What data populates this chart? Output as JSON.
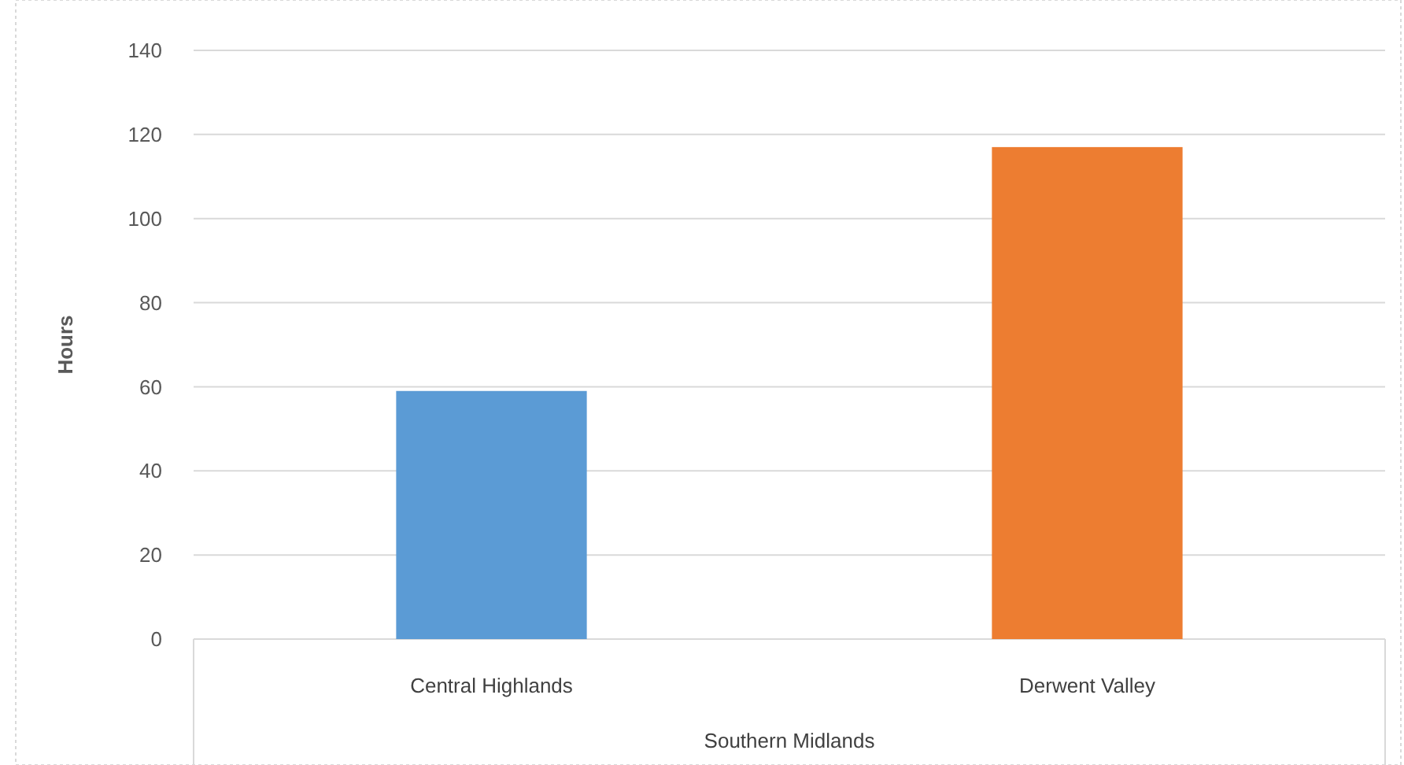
{
  "chart_data": {
    "type": "bar",
    "categories": [
      "Central Highlands",
      "Derwent Valley"
    ],
    "colors": [
      "#5b9bd5",
      "#ed7d31"
    ],
    "values": [
      59,
      117
    ],
    "ylim": [
      0,
      140
    ],
    "yticks": [
      0,
      20,
      40,
      60,
      80,
      100,
      120,
      140
    ],
    "grid": "y",
    "ylabel": "Hours",
    "xlabel": "Southern Midlands"
  }
}
